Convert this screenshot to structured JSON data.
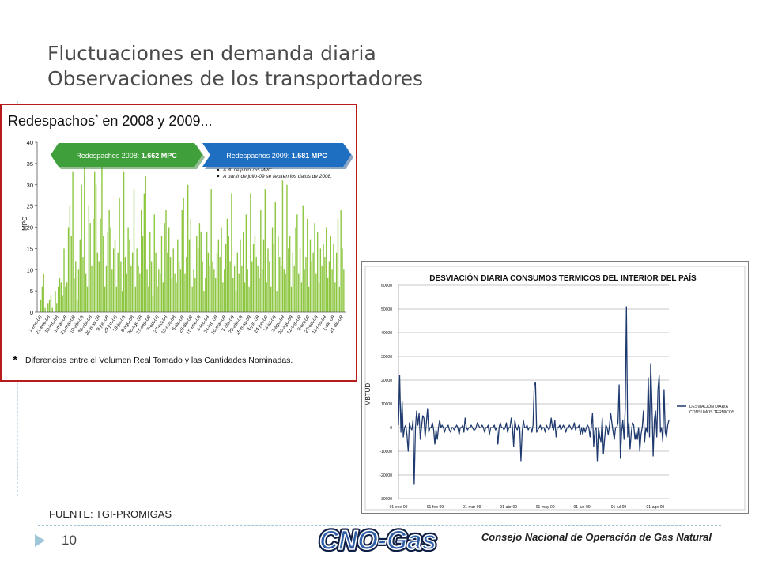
{
  "slide": {
    "title_line1": "Fluctuaciones en demanda diaria",
    "title_line2": "Observaciones de los transportadores",
    "source": "FUENTE: TGI-PROMIGAS",
    "page_number": "10",
    "organization": "Consejo Nacional de Operación de Gas Natural",
    "logo_text": "CNO-Gas",
    "colors": {
      "title": "#4a4a4a",
      "rule": "#9cc3d6",
      "panel_border": "#b71c1c",
      "bar": "#8cc63f",
      "line": "#1f3a6e",
      "green_arrow": "#3f9f3a",
      "blue_arrow": "#1e6fc2"
    }
  },
  "chart_data": [
    {
      "type": "bar",
      "title": "Redespachos",
      "title_mark": "*",
      "title_suffix": " en 2008 y 2009...",
      "ylabel": "MPC",
      "ylim": [
        0,
        40
      ],
      "yticks": [
        "0",
        "5",
        "10",
        "15",
        "20",
        "25",
        "30",
        "35",
        "40"
      ],
      "xticks": [
        "1-ene-08",
        "21-ene-08",
        "10-feb-08",
        "1-mar-08",
        "21-mar-08",
        "10-abr-08",
        "30-abr-08",
        "20-may-08",
        "9-jun-08",
        "29-jun-08",
        "19-jul-08",
        "8-ago-08",
        "28-ago-08",
        "17-sep-08",
        "7-oct-08",
        "27-oct-08",
        "16-nov-08",
        "6-dic-08",
        "26-dic-08",
        "15-ene-09",
        "4-feb-09",
        "24-feb-09",
        "16-mar-09",
        "5-abr-09",
        "25-abr-09",
        "15-may-09",
        "4-jun-09",
        "24-jun-09",
        "14-jul-09",
        "3-ago-09",
        "23-ago-09",
        "12-sep-09",
        "2-oct-09",
        "22-oct-09",
        "11-nov-09",
        "1-dic-09",
        "21-dic-09"
      ],
      "callouts": {
        "box_2008": {
          "prefix": "Redespachos 2008: ",
          "value": "1.662 MPC"
        },
        "box_2009": {
          "prefix": "Redespachos 2009: ",
          "value": "1.581 MPC"
        },
        "notes": [
          "A 30 de junio 755 MPC",
          "A partir de julio-09 se repiten los datos de 2008."
        ]
      },
      "footnote_mark": "*",
      "footnote": "Diferencias entre el Volumen Real Tomado y las Cantidades Nominadas.",
      "series": [
        {
          "values": [
            0,
            3,
            6,
            9,
            1,
            0,
            2,
            3,
            4,
            1,
            0,
            5,
            2,
            6,
            8,
            7,
            4,
            15,
            6,
            7,
            20,
            25,
            18,
            33,
            8,
            12,
            3,
            10,
            17,
            30,
            13,
            35,
            9,
            6,
            25,
            21,
            11,
            22,
            33,
            30,
            14,
            12,
            22,
            35,
            18,
            6,
            11,
            19,
            24,
            20,
            10,
            15,
            17,
            6,
            14,
            27,
            12,
            5,
            33,
            13,
            9,
            20,
            17,
            11,
            14,
            29,
            6,
            15,
            11,
            9,
            24,
            18,
            28,
            32,
            10,
            6,
            19,
            12,
            4,
            23,
            14,
            6,
            10,
            9,
            18,
            7,
            21,
            24,
            14,
            20,
            13,
            8,
            15,
            9,
            7,
            17,
            12,
            10,
            24,
            27,
            9,
            13,
            30,
            17,
            22,
            6,
            10,
            8,
            18,
            15,
            21,
            19,
            12,
            5,
            8,
            19,
            14,
            11,
            29,
            12,
            10,
            8,
            14,
            17,
            13,
            20,
            7,
            10,
            16,
            22,
            18,
            12,
            28,
            8,
            11,
            5,
            14,
            9,
            17,
            11,
            19,
            7,
            23,
            10,
            6,
            28,
            12,
            16,
            18,
            13,
            11,
            8,
            24,
            10,
            17,
            29,
            7,
            15,
            12,
            6,
            20,
            16,
            26,
            5,
            18,
            13,
            11,
            31,
            10,
            9,
            30,
            15,
            18,
            6,
            14,
            11,
            20,
            23,
            9,
            15,
            7,
            25,
            10,
            13,
            22,
            6,
            17,
            12,
            14,
            21,
            9,
            19,
            7,
            15,
            11,
            16,
            13,
            20,
            8,
            12,
            18,
            10,
            16,
            7,
            14,
            22,
            6,
            24,
            15,
            10
          ]
        }
      ]
    },
    {
      "type": "line",
      "title": "DESVIACIÓN DIARIA CONSUMOS TERMICOS DEL INTERIOR DEL PAÍS",
      "ylabel": "MBTUD",
      "ylim": [
        -30000,
        60000
      ],
      "yticks": [
        "-30000",
        "-20000",
        "-10000",
        "0",
        "10000",
        "20000",
        "30000",
        "40000",
        "50000",
        "60000"
      ],
      "xticks": [
        "01-ene-09",
        "01-feb-09",
        "01-mar-09",
        "01-abr-09",
        "01-may-09",
        "01-jun-09",
        "01-jul-09",
        "01-ago-09"
      ],
      "legend": [
        "DESVIACIÓN DIARIA",
        "CONSUMOS TERMICOS"
      ],
      "legend_position": "right",
      "series": [
        {
          "values": [
            1000,
            22000,
            -2000,
            11000,
            -4000,
            0,
            1000,
            -3000,
            -10000,
            2000,
            0,
            -1000,
            3000,
            -24000,
            0,
            7000,
            1000,
            6000,
            -5000,
            0,
            5000,
            4000,
            -4000,
            2000,
            8000,
            -2000,
            0,
            0,
            2000,
            -1000,
            -7000,
            -1000,
            -5000,
            0,
            3000,
            0,
            1000,
            0,
            -2000,
            0,
            0,
            1000,
            -1000,
            -2000,
            0,
            0,
            -1000,
            0,
            1000,
            0,
            -3000,
            0,
            0,
            1000,
            -2000,
            4000,
            0,
            -1000,
            0,
            0,
            1000,
            0,
            -1000,
            -1000,
            0,
            2000,
            1000,
            0,
            0,
            1000,
            0,
            -2000,
            0,
            0,
            1000,
            -3000,
            0,
            0,
            0,
            1000,
            -1000,
            0,
            -7000,
            0,
            2000,
            0,
            0,
            -1000,
            0,
            2000,
            -2000,
            0,
            0,
            4000,
            0,
            -8000,
            3000,
            0,
            -1000,
            1000,
            0,
            -14000,
            -2000,
            3000,
            0,
            0,
            1000,
            -1000,
            0,
            0,
            -2000,
            1000,
            18000,
            19000,
            -2000,
            -1000,
            0,
            1000,
            -1000,
            0,
            0,
            -2000,
            1000,
            0,
            -1000,
            0,
            4000,
            0,
            -1000,
            3000,
            -4000,
            0,
            0,
            1000,
            -1000,
            0,
            1000,
            0,
            -2000,
            0,
            0,
            1000,
            0,
            -1000,
            0,
            2000,
            -1000,
            0,
            0,
            1000,
            -3000,
            0,
            -3000,
            0,
            -2000,
            0,
            1000,
            0,
            -4000,
            0,
            6000,
            -8000,
            -1000,
            0,
            -14000,
            0,
            -4000,
            -6000,
            4000,
            -11000,
            -5000,
            1000,
            0,
            -3000,
            1000,
            6000,
            2000,
            -2000,
            -5000,
            0,
            0,
            2000,
            18000,
            -13000,
            -2000,
            3000,
            -5000,
            8000,
            51000,
            -4000,
            2000,
            -9000,
            -2000,
            2000,
            1000,
            -5000,
            -2000,
            -5000,
            0,
            -10000,
            -3000,
            0,
            7000,
            -6000,
            0,
            -2000,
            21000,
            -4000,
            27000,
            11000,
            -12000,
            3000,
            7000,
            -4000,
            16000,
            22000,
            -2000,
            0,
            -6000,
            16000,
            -2000,
            -4000,
            1000,
            3000
          ]
        }
      ]
    }
  ]
}
